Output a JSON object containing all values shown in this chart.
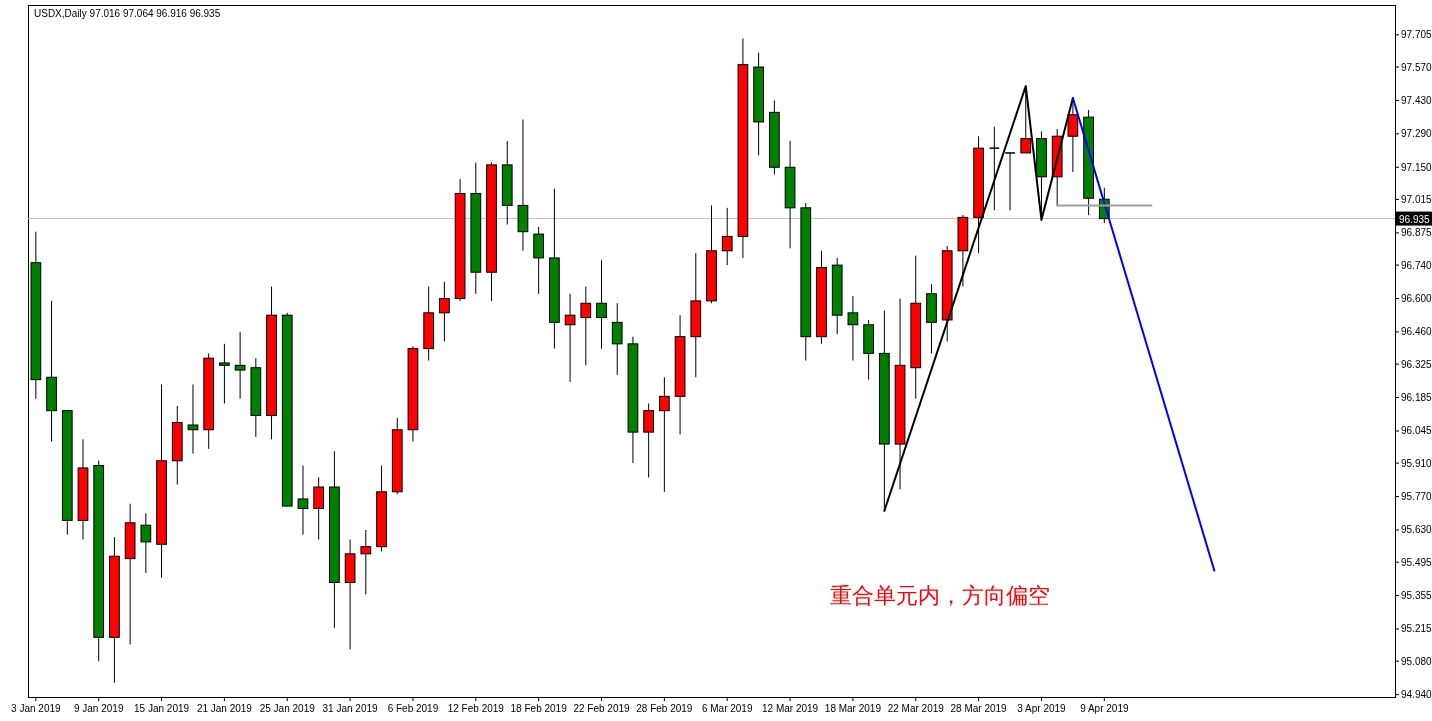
{
  "chart_data": {
    "type": "candlestick",
    "title": "USDX,Daily  97.016 97.064 96.916 96.935",
    "categories": [
      "3 Jan 2019",
      null,
      null,
      null,
      "9 Jan 2019",
      null,
      null,
      null,
      "15 Jan 2019",
      null,
      null,
      null,
      "21 Jan 2019",
      null,
      null,
      null,
      "25 Jan 2019",
      null,
      null,
      null,
      "31 Jan 2019",
      null,
      null,
      null,
      "6 Feb 2019",
      null,
      null,
      null,
      "12 Feb 2019",
      null,
      null,
      null,
      "18 Feb 2019",
      null,
      null,
      null,
      "22 Feb 2019",
      null,
      null,
      null,
      "28 Feb 2019",
      null,
      null,
      null,
      "6 Mar 2019",
      null,
      null,
      null,
      "12 Mar 2019",
      null,
      null,
      null,
      "18 Mar 2019",
      null,
      null,
      null,
      "22 Mar 2019",
      null,
      null,
      null,
      "28 Mar 2019",
      null,
      null,
      null,
      "3 Apr 2019",
      null,
      null,
      null,
      "9 Apr 2019",
      null,
      null,
      null,
      null,
      null,
      null,
      null,
      null,
      null,
      null,
      null,
      null,
      null,
      null,
      null,
      null,
      null,
      null
    ],
    "ohlc": [
      [
        96.75,
        96.88,
        96.18,
        96.26
      ],
      [
        96.27,
        96.59,
        96.0,
        96.13
      ],
      [
        96.13,
        96.13,
        95.61,
        95.67
      ],
      [
        95.67,
        96.01,
        95.59,
        95.89
      ],
      [
        95.9,
        95.92,
        95.08,
        95.18
      ],
      [
        95.18,
        95.6,
        94.99,
        95.52
      ],
      [
        95.51,
        95.74,
        95.15,
        95.66
      ],
      [
        95.65,
        95.7,
        95.45,
        95.58
      ],
      [
        95.57,
        96.24,
        95.43,
        95.92
      ],
      [
        95.92,
        96.15,
        95.82,
        96.08
      ],
      [
        96.07,
        96.24,
        95.95,
        96.05
      ],
      [
        96.05,
        96.37,
        95.97,
        96.35
      ],
      [
        96.33,
        96.41,
        96.16,
        96.32
      ],
      [
        96.32,
        96.46,
        96.18,
        96.3
      ],
      [
        96.31,
        96.35,
        96.02,
        96.11
      ],
      [
        96.11,
        96.65,
        96.01,
        96.53
      ],
      [
        96.53,
        96.54,
        95.73,
        95.73
      ],
      [
        95.76,
        95.9,
        95.61,
        95.72
      ],
      [
        95.72,
        95.85,
        95.59,
        95.81
      ],
      [
        95.81,
        95.96,
        95.22,
        95.41
      ],
      [
        95.41,
        95.59,
        95.13,
        95.53
      ],
      [
        95.53,
        95.63,
        95.36,
        95.56
      ],
      [
        95.56,
        95.9,
        95.54,
        95.79
      ],
      [
        95.79,
        96.1,
        95.78,
        96.05
      ],
      [
        96.05,
        96.4,
        96.0,
        96.39
      ],
      [
        96.39,
        96.65,
        96.34,
        96.54
      ],
      [
        96.54,
        96.67,
        96.42,
        96.6
      ],
      [
        96.6,
        97.1,
        96.59,
        97.04
      ],
      [
        97.04,
        97.17,
        96.62,
        96.71
      ],
      [
        96.71,
        97.17,
        96.59,
        97.16
      ],
      [
        97.16,
        97.26,
        96.91,
        96.99
      ],
      [
        96.99,
        97.35,
        96.8,
        96.88
      ],
      [
        96.87,
        96.9,
        96.62,
        96.77
      ],
      [
        96.77,
        97.06,
        96.39,
        96.5
      ],
      [
        96.49,
        96.62,
        96.25,
        96.53
      ],
      [
        96.52,
        96.65,
        96.32,
        96.58
      ],
      [
        96.58,
        96.76,
        96.39,
        96.52
      ],
      [
        96.5,
        96.58,
        96.28,
        96.41
      ],
      [
        96.41,
        96.44,
        95.91,
        96.04
      ],
      [
        96.04,
        96.16,
        95.85,
        96.13
      ],
      [
        96.13,
        96.27,
        95.79,
        96.19
      ],
      [
        96.19,
        96.53,
        96.03,
        96.44
      ],
      [
        96.44,
        96.79,
        96.27,
        96.59
      ],
      [
        96.59,
        96.99,
        96.58,
        96.8
      ],
      [
        96.8,
        96.98,
        96.74,
        96.86
      ],
      [
        96.86,
        97.69,
        96.77,
        97.58
      ],
      [
        97.57,
        97.63,
        97.2,
        97.34
      ],
      [
        97.38,
        97.43,
        97.12,
        97.15
      ],
      [
        97.15,
        97.26,
        96.81,
        96.98
      ],
      [
        96.98,
        97.0,
        96.34,
        96.44
      ],
      [
        96.44,
        96.8,
        96.41,
        96.73
      ],
      [
        96.74,
        96.77,
        96.45,
        96.53
      ],
      [
        96.54,
        96.61,
        96.34,
        96.49
      ],
      [
        96.49,
        96.51,
        96.26,
        96.37
      ],
      [
        96.37,
        96.55,
        95.72,
        95.99
      ],
      [
        95.99,
        96.6,
        95.8,
        96.32
      ],
      [
        96.31,
        96.78,
        96.18,
        96.58
      ],
      [
        96.62,
        96.66,
        96.37,
        96.5
      ],
      [
        96.51,
        96.82,
        96.42,
        96.8
      ],
      [
        96.8,
        96.95,
        96.65,
        96.94
      ],
      [
        96.94,
        97.28,
        96.79,
        97.23
      ],
      [
        97.23,
        97.32,
        96.97,
        97.23
      ],
      [
        97.21,
        97.21,
        96.97,
        97.21
      ],
      [
        97.21,
        97.49,
        97.21,
        97.27
      ],
      [
        97.27,
        97.3,
        96.93,
        97.11
      ],
      [
        97.11,
        97.31,
        96.99,
        97.28
      ],
      [
        97.28,
        97.44,
        97.13,
        97.37
      ],
      [
        97.36,
        97.39,
        96.95,
        97.02
      ],
      [
        97.016,
        97.064,
        96.916,
        96.935
      ],
      null,
      null,
      null,
      null,
      null,
      null,
      null,
      null,
      null,
      null,
      null,
      null,
      null,
      null,
      null,
      null,
      null,
      null
    ],
    "colors": [
      "#008000",
      "#008000",
      "#008000",
      "#ff0000",
      "#008000",
      "#ff0000",
      "#ff0000",
      "#008000",
      "#ff0000",
      "#ff0000",
      "#008000",
      "#ff0000",
      "#008000",
      "#008000",
      "#008000",
      "#ff0000",
      "#008000",
      "#008000",
      "#ff0000",
      "#008000",
      "#ff0000",
      "#ff0000",
      "#ff0000",
      "#ff0000",
      "#ff0000",
      "#ff0000",
      "#ff0000",
      "#ff0000",
      "#008000",
      "#ff0000",
      "#008000",
      "#008000",
      "#008000",
      "#008000",
      "#ff0000",
      "#ff0000",
      "#008000",
      "#008000",
      "#008000",
      "#ff0000",
      "#ff0000",
      "#ff0000",
      "#ff0000",
      "#ff0000",
      "#ff0000",
      "#ff0000",
      "#008000",
      "#008000",
      "#008000",
      "#008000",
      "#ff0000",
      "#008000",
      "#008000",
      "#008000",
      "#008000",
      "#ff0000",
      "#ff0000",
      "#008000",
      "#ff0000",
      "#ff0000",
      "#ff0000",
      "#000000",
      "#000000",
      "#ff0000",
      "#008000",
      "#ff0000",
      "#ff0000",
      "#008000",
      "#008000",
      null,
      null,
      null,
      null,
      null,
      null,
      null,
      null,
      null,
      null,
      null,
      null,
      null,
      null,
      null,
      null,
      null,
      null
    ],
    "series": [
      {
        "type": "line",
        "color": "#000000",
        "values": [
          null,
          null,
          null,
          null,
          null,
          null,
          null,
          null,
          null,
          null,
          null,
          null,
          null,
          null,
          null,
          null,
          null,
          null,
          null,
          null,
          null,
          null,
          null,
          null,
          null,
          null,
          null,
          null,
          null,
          null,
          null,
          null,
          null,
          null,
          null,
          null,
          null,
          null,
          null,
          null,
          null,
          null,
          null,
          null,
          null,
          null,
          null,
          null,
          null,
          null,
          null,
          null,
          null,
          null,
          95.71,
          null,
          null,
          null,
          null,
          null,
          null,
          null,
          null,
          97.49,
          96.93,
          null,
          97.44,
          null,
          null,
          null,
          null,
          null,
          null,
          null,
          null,
          null,
          null,
          null,
          null,
          null,
          null,
          null,
          null,
          null,
          null,
          null,
          null
        ]
      },
      {
        "type": "line",
        "color": "#0000ff",
        "values": [
          null,
          null,
          null,
          null,
          null,
          null,
          null,
          null,
          null,
          null,
          null,
          null,
          null,
          null,
          null,
          null,
          null,
          null,
          null,
          null,
          null,
          null,
          null,
          null,
          null,
          null,
          null,
          null,
          null,
          null,
          null,
          null,
          null,
          null,
          null,
          null,
          null,
          null,
          null,
          null,
          null,
          null,
          null,
          null,
          null,
          null,
          null,
          null,
          null,
          null,
          null,
          null,
          null,
          null,
          null,
          null,
          null,
          null,
          null,
          null,
          null,
          null,
          null,
          null,
          null,
          null,
          97.44,
          null,
          null,
          null,
          null,
          null,
          null,
          null,
          null,
          95.46,
          null,
          null,
          null,
          null,
          null,
          null,
          null,
          null,
          null,
          null,
          null
        ]
      },
      {
        "type": "line",
        "color": "#a0a0a0",
        "values": [
          null,
          null,
          null,
          null,
          null,
          null,
          null,
          null,
          null,
          null,
          null,
          null,
          null,
          null,
          null,
          null,
          null,
          null,
          null,
          null,
          null,
          null,
          null,
          null,
          null,
          null,
          null,
          null,
          null,
          null,
          null,
          null,
          null,
          null,
          null,
          null,
          null,
          null,
          null,
          null,
          null,
          null,
          null,
          null,
          null,
          null,
          null,
          null,
          null,
          null,
          null,
          null,
          null,
          null,
          null,
          null,
          null,
          null,
          null,
          null,
          null,
          null,
          null,
          null,
          null,
          96.99,
          null,
          null,
          null,
          null,
          null,
          96.99,
          null,
          null,
          null,
          null,
          null,
          null,
          null,
          null,
          null,
          null,
          null,
          null,
          null,
          null,
          null
        ]
      }
    ],
    "ylim": [
      94.93,
      97.83
    ],
    "yticks": [
      {
        "value": 94.94,
        "label": "94.940"
      },
      {
        "value": 95.08,
        "label": "95.080"
      },
      {
        "value": 95.215,
        "label": "95.215"
      },
      {
        "value": 95.355,
        "label": "95.355"
      },
      {
        "value": 95.495,
        "label": "95.495"
      },
      {
        "value": 95.63,
        "label": "95.630"
      },
      {
        "value": 95.77,
        "label": "95.770"
      },
      {
        "value": 95.91,
        "label": "95.910"
      },
      {
        "value": 96.045,
        "label": "96.045"
      },
      {
        "value": 96.185,
        "label": "96.185"
      },
      {
        "value": 96.325,
        "label": "96.325"
      },
      {
        "value": 96.46,
        "label": "96.460"
      },
      {
        "value": 96.6,
        "label": "96.600"
      },
      {
        "value": 96.74,
        "label": "96.740"
      },
      {
        "value": 96.875,
        "label": "96.875"
      },
      {
        "value": 97.015,
        "label": "97.015"
      },
      {
        "value": 97.15,
        "label": "97.150"
      },
      {
        "value": 97.29,
        "label": "97.290"
      },
      {
        "value": 97.43,
        "label": "97.430"
      },
      {
        "value": 97.57,
        "label": "97.570"
      },
      {
        "value": 97.705,
        "label": "97.705"
      }
    ],
    "ref_lines": [
      {
        "axis": "y",
        "value": 96.935,
        "label": "96.935",
        "color": "#c0c0c0"
      }
    ],
    "annotations": [
      "重合单元内，方向偏空"
    ]
  }
}
